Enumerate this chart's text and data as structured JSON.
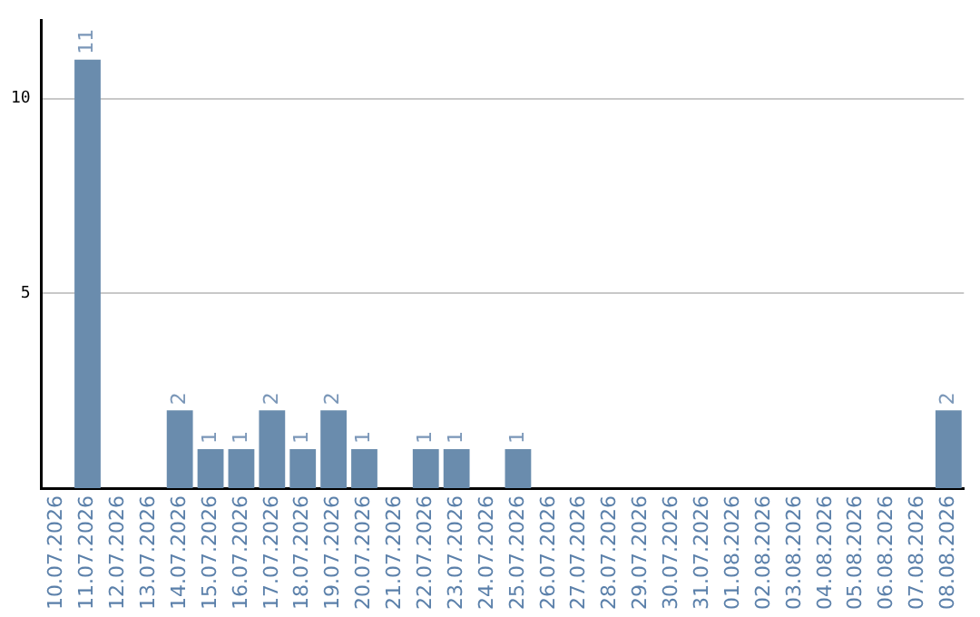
{
  "chart_data": {
    "type": "bar",
    "categories": [
      "10.07.2026",
      "11.07.2026",
      "12.07.2026",
      "13.07.2026",
      "14.07.2026",
      "15.07.2026",
      "16.07.2026",
      "17.07.2026",
      "18.07.2026",
      "19.07.2026",
      "20.07.2026",
      "21.07.2026",
      "22.07.2026",
      "23.07.2026",
      "24.07.2026",
      "25.07.2026",
      "26.07.2026",
      "27.07.2026",
      "28.07.2026",
      "29.07.2026",
      "30.07.2026",
      "31.07.2026",
      "01.08.2026",
      "02.08.2026",
      "03.08.2026",
      "04.08.2026",
      "05.08.2026",
      "06.08.2026",
      "07.08.2026",
      "08.08.2026"
    ],
    "values": [
      0,
      11,
      0,
      0,
      2,
      1,
      1,
      2,
      1,
      2,
      1,
      0,
      1,
      1,
      0,
      1,
      0,
      0,
      0,
      0,
      0,
      0,
      0,
      0,
      0,
      0,
      0,
      0,
      0,
      2
    ],
    "value_labels": [
      null,
      "11",
      null,
      null,
      "2",
      "1",
      "1",
      "2",
      "1",
      "2",
      "1",
      null,
      "1",
      "1",
      null,
      "1",
      null,
      null,
      null,
      null,
      null,
      null,
      null,
      null,
      null,
      null,
      null,
      null,
      null,
      "2"
    ],
    "color": "#6a8cad",
    "ylim": [
      0,
      12
    ],
    "yticks": [
      5,
      10
    ],
    "grid": "y",
    "legend": false
  }
}
